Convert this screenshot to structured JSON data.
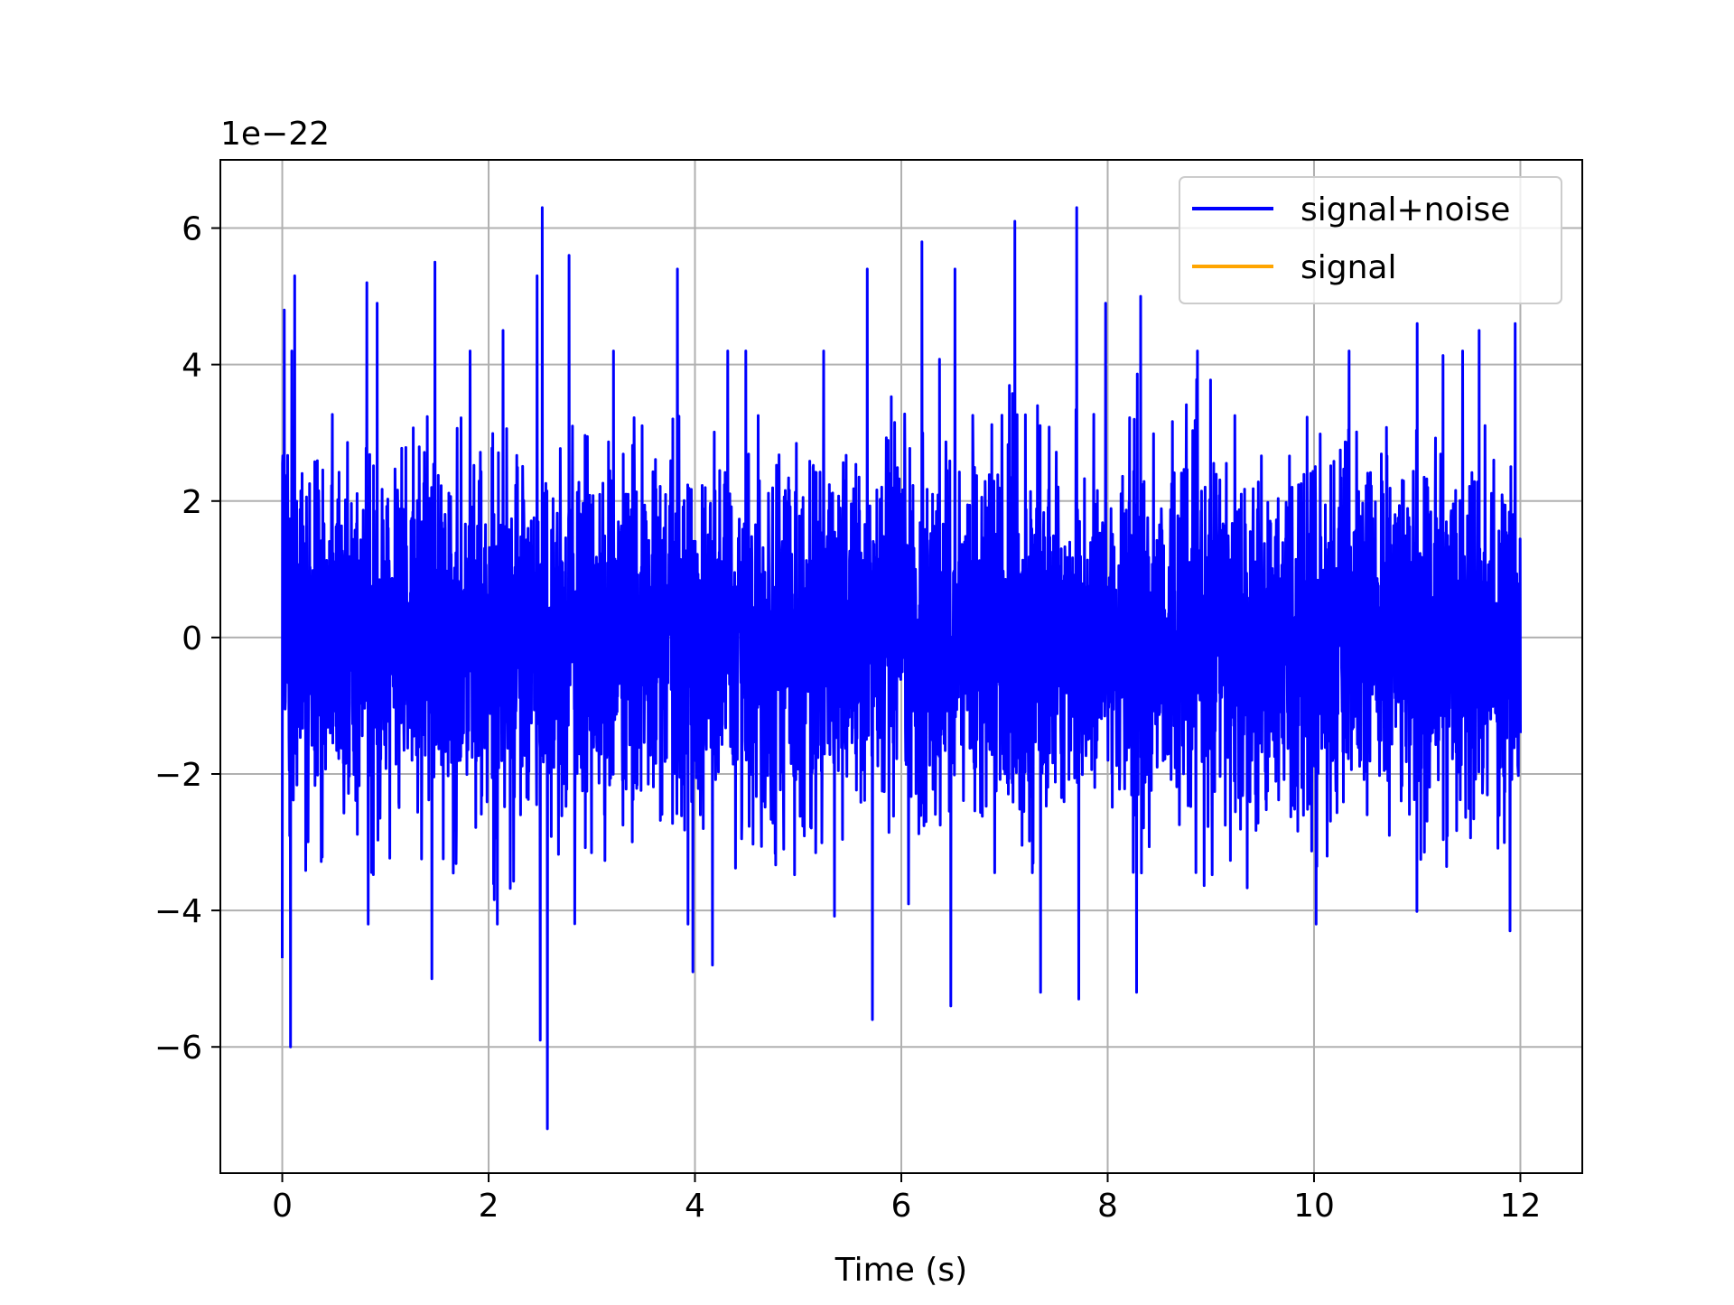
{
  "chart_data": {
    "type": "line",
    "xlabel": "Time (s)",
    "ylabel": "",
    "offset_label": "1e−22",
    "y_scale_factor": 1e-22,
    "xlim": [
      -0.6,
      12.6
    ],
    "ylim": [
      -7.85,
      7.0
    ],
    "x_ticks": [
      0,
      2,
      4,
      6,
      8,
      10,
      12
    ],
    "x_tick_labels": [
      "0",
      "2",
      "4",
      "6",
      "8",
      "10",
      "12"
    ],
    "y_ticks": [
      -6,
      -4,
      -2,
      0,
      2,
      4,
      6
    ],
    "y_tick_labels": [
      "−6",
      "−4",
      "−2",
      "0",
      "2",
      "4",
      "6"
    ],
    "grid": true,
    "legend_position": "top-right",
    "x_range": [
      0,
      12
    ],
    "series": [
      {
        "name": "signal+noise",
        "color": "#0000ff",
        "amplitude_rms": 1.3,
        "min": -7.2,
        "max": 6.3,
        "peaks": [
          {
            "x": 0.02,
            "y": 4.8
          },
          {
            "x": 0.12,
            "y": 5.3
          },
          {
            "x": 0.08,
            "y": -6.0
          },
          {
            "x": 0.0,
            "y": -4.7
          },
          {
            "x": 0.82,
            "y": 5.2
          },
          {
            "x": 0.92,
            "y": 4.9
          },
          {
            "x": 1.48,
            "y": 5.5
          },
          {
            "x": 1.45,
            "y": -5.0
          },
          {
            "x": 2.14,
            "y": 4.5
          },
          {
            "x": 2.52,
            "y": 6.3
          },
          {
            "x": 2.47,
            "y": 5.3
          },
          {
            "x": 2.57,
            "y": -7.2
          },
          {
            "x": 2.5,
            "y": -5.9
          },
          {
            "x": 2.78,
            "y": 5.6
          },
          {
            "x": 3.83,
            "y": 5.4
          },
          {
            "x": 3.98,
            "y": -4.9
          },
          {
            "x": 4.17,
            "y": -4.8
          },
          {
            "x": 5.67,
            "y": 5.4
          },
          {
            "x": 5.72,
            "y": -5.6
          },
          {
            "x": 6.2,
            "y": 5.8
          },
          {
            "x": 6.52,
            "y": 5.4
          },
          {
            "x": 6.48,
            "y": -5.4
          },
          {
            "x": 7.1,
            "y": 6.1
          },
          {
            "x": 7.35,
            "y": -5.2
          },
          {
            "x": 7.7,
            "y": 6.3
          },
          {
            "x": 7.72,
            "y": -5.3
          },
          {
            "x": 7.98,
            "y": 4.9
          },
          {
            "x": 8.32,
            "y": 5.0
          },
          {
            "x": 8.28,
            "y": -5.2
          },
          {
            "x": 11.0,
            "y": 4.6
          },
          {
            "x": 11.6,
            "y": 4.5
          },
          {
            "x": 11.95,
            "y": 4.6
          },
          {
            "x": 11.9,
            "y": -4.3
          }
        ]
      },
      {
        "name": "signal",
        "color": "#ffa500",
        "values": [
          0.0,
          0.0
        ]
      }
    ]
  }
}
